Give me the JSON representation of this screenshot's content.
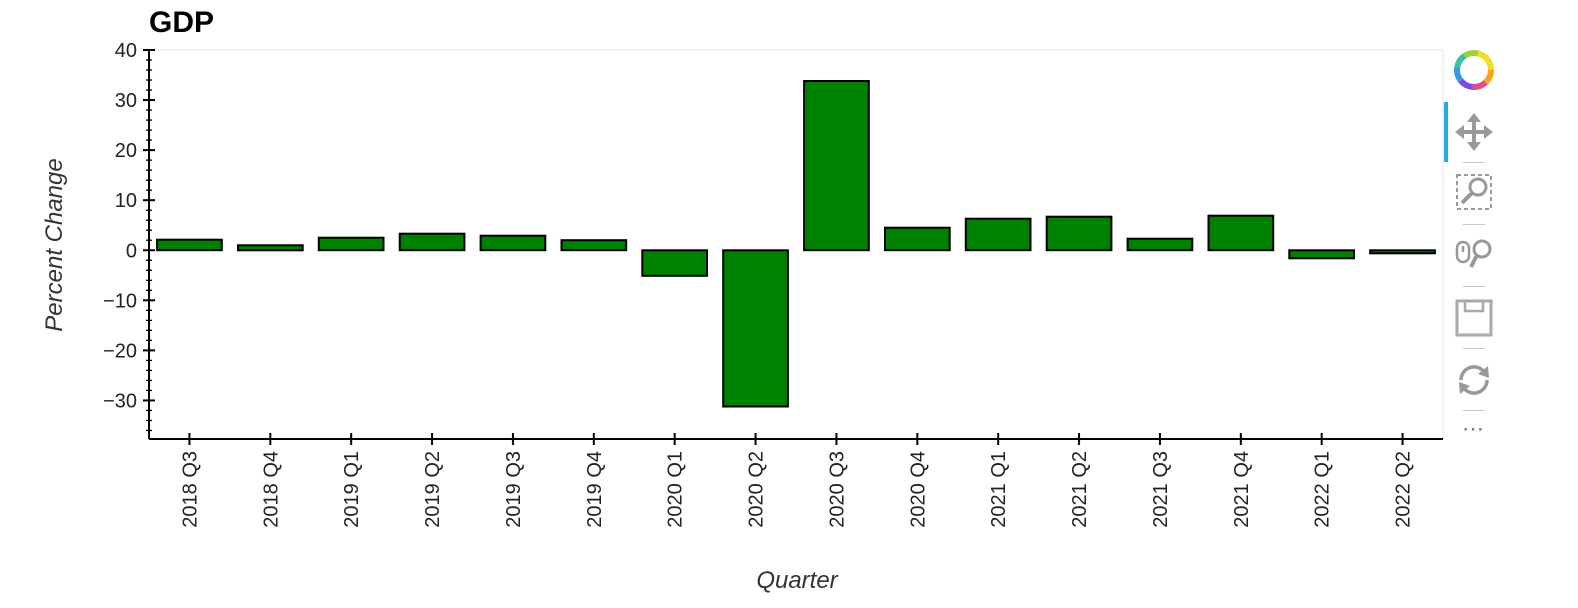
{
  "chart_data": {
    "type": "bar",
    "title": "GDP",
    "xlabel": "Quarter",
    "ylabel": "Percent Change",
    "categories": [
      "2018 Q3",
      "2018 Q4",
      "2019 Q1",
      "2019 Q2",
      "2019 Q3",
      "2019 Q4",
      "2020 Q1",
      "2020 Q2",
      "2020 Q3",
      "2020 Q4",
      "2021 Q1",
      "2021 Q2",
      "2021 Q3",
      "2021 Q4",
      "2022 Q1",
      "2022 Q2"
    ],
    "values": [
      2.1,
      1.0,
      2.5,
      3.3,
      2.9,
      2.0,
      -5.1,
      -31.2,
      33.8,
      4.5,
      6.3,
      6.7,
      2.3,
      6.9,
      -1.6,
      -0.6
    ],
    "ylim": [
      -37.7,
      40
    ],
    "yticks": [
      -30,
      -20,
      -10,
      0,
      10,
      20,
      30,
      40
    ],
    "ytick_labels": [
      "−30",
      "−20",
      "−10",
      "0",
      "10",
      "20",
      "30",
      "40"
    ],
    "bar_color": "#008000",
    "bar_outline": "#000000",
    "grid": false,
    "legend": "none"
  },
  "toolbar": {
    "tools": [
      "bokeh-logo-icon",
      "pan-icon",
      "box-zoom-icon",
      "wheel-zoom-icon",
      "save-icon",
      "reset-icon"
    ],
    "more_label": "⋯",
    "accent": "#26aae1"
  }
}
